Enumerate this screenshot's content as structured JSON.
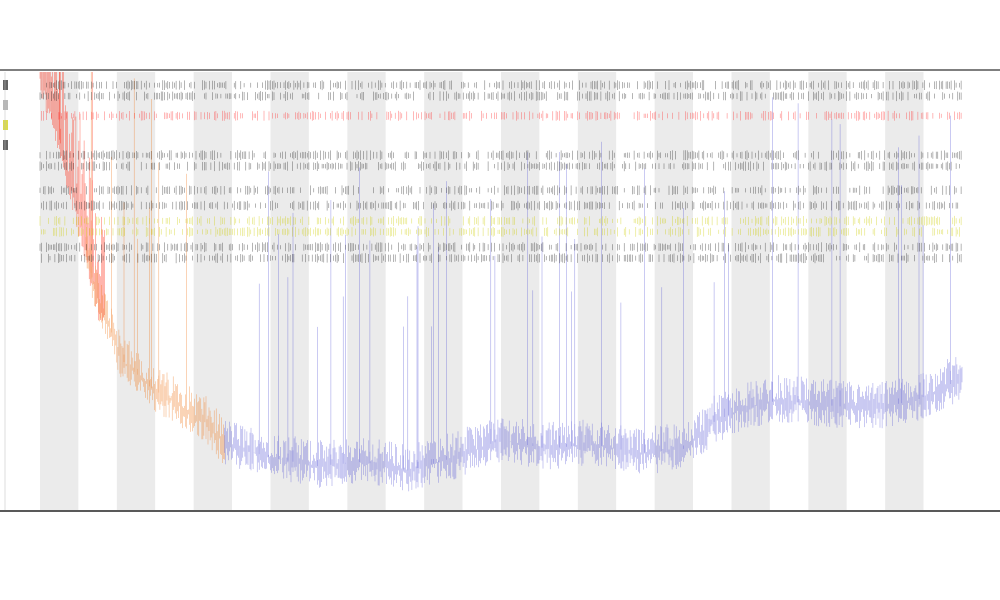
{
  "chart_data": {
    "type": "line",
    "title": "",
    "subtitle_1": "",
    "subtitle_2": "",
    "xlabel": "",
    "ylabel": "",
    "x_tick_labels": [],
    "ylim": [
      0,
      1
    ],
    "grid": false,
    "band_colors": [
      "#ebebeb",
      "#ffffff"
    ],
    "band_count": 24,
    "series": [
      {
        "color": "#ff1a00",
        "phase": "early",
        "x_range": [
          0,
          0.07
        ]
      },
      {
        "color": "#f07a1e",
        "phase": "mid",
        "x_range": [
          0.05,
          0.2
        ]
      },
      {
        "color": "#5b5bd6",
        "phase": "late",
        "x_range": [
          0.2,
          1.0
        ]
      }
    ],
    "envelope": {
      "x": [
        0.0,
        0.03,
        0.06,
        0.09,
        0.12,
        0.15,
        0.18,
        0.2,
        0.25,
        0.3,
        0.35,
        0.4,
        0.45,
        0.5,
        0.55,
        0.6,
        0.65,
        0.7,
        0.73,
        0.76,
        0.8,
        0.85,
        0.9,
        0.95,
        1.0
      ],
      "y": [
        1.0,
        0.78,
        0.5,
        0.34,
        0.28,
        0.24,
        0.2,
        0.15,
        0.12,
        0.1,
        0.11,
        0.09,
        0.12,
        0.16,
        0.14,
        0.15,
        0.13,
        0.14,
        0.2,
        0.23,
        0.25,
        0.24,
        0.23,
        0.25,
        0.3
      ]
    },
    "track_rows": [
      {
        "color": "#222222",
        "level": 0.97
      },
      {
        "color": "#222222",
        "level": 0.945
      },
      {
        "color": "#ff2a2a",
        "level": 0.9
      },
      {
        "color": "#222222",
        "level": 0.81
      },
      {
        "color": "#222222",
        "level": 0.785
      },
      {
        "color": "#222222",
        "level": 0.73
      },
      {
        "color": "#222222",
        "level": 0.695
      },
      {
        "color": "#cccc00",
        "level": 0.66
      },
      {
        "color": "#cccc00",
        "level": 0.635
      },
      {
        "color": "#222222",
        "level": 0.6
      },
      {
        "color": "#222222",
        "level": 0.575
      }
    ],
    "legend_position": "top-left"
  }
}
